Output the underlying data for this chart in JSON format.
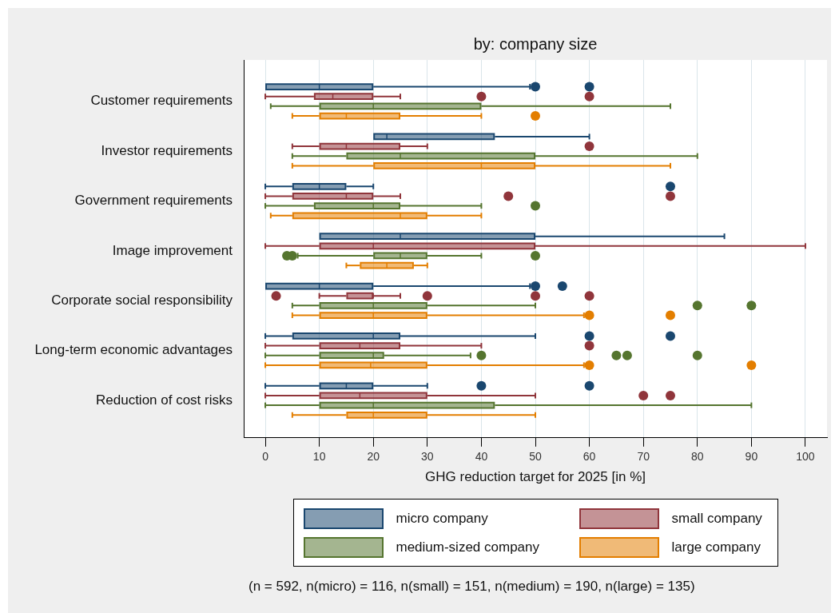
{
  "chart_data": {
    "type": "box",
    "orientation": "horizontal",
    "title": "by: company size",
    "xlabel": "GHG reduction target for 2025 [in %]",
    "categories": [
      "Customer requirements",
      "Investor requirements",
      "Government requirements",
      "Image improvement",
      "Corporate social responsibility",
      "Long-term economic advantages",
      "Reduction of cost risks"
    ],
    "series": [
      {
        "name": "micro company",
        "color": "#1a476f",
        "boxes": [
          {
            "low": 0,
            "q1": 0,
            "median": 10,
            "q3": 20,
            "high": 49,
            "outliers": [
              50,
              60
            ]
          },
          {
            "low": 20,
            "q1": 20,
            "median": 22.5,
            "q3": 42.5,
            "high": 60
          },
          {
            "low": 0,
            "q1": 5,
            "median": 10,
            "q3": 15,
            "high": 20,
            "outliers": [
              75
            ]
          },
          {
            "low": 10,
            "q1": 10,
            "median": 25,
            "q3": 50,
            "high": 85
          },
          {
            "low": 0,
            "q1": 0,
            "median": 10,
            "q3": 20,
            "high": 49,
            "outliers": [
              50,
              55
            ]
          },
          {
            "low": 0,
            "q1": 5,
            "median": 20,
            "q3": 25,
            "high": 50,
            "outliers": [
              60,
              75
            ]
          },
          {
            "low": 0,
            "q1": 10,
            "median": 15,
            "q3": 20,
            "high": 30,
            "outliers": [
              40,
              60
            ]
          }
        ]
      },
      {
        "name": "small company",
        "color": "#90353b",
        "boxes": [
          {
            "low": 0,
            "q1": 9,
            "median": 12.5,
            "q3": 20,
            "high": 25,
            "outliers": [
              40,
              60
            ]
          },
          {
            "low": 5,
            "q1": 10,
            "median": 15,
            "q3": 25,
            "high": 30,
            "outliers": [
              60
            ]
          },
          {
            "low": 0,
            "q1": 5,
            "median": 15,
            "q3": 20,
            "high": 25,
            "outliers": [
              45,
              75
            ]
          },
          {
            "low": 0,
            "q1": 10,
            "median": 20,
            "q3": 50,
            "high": 100
          },
          {
            "low": 10,
            "q1": 15,
            "median": 20,
            "q3": 20,
            "high": 25,
            "outliers": [
              2,
              30,
              50,
              60
            ]
          },
          {
            "low": 0,
            "q1": 10,
            "median": 17.5,
            "q3": 25,
            "high": 40,
            "outliers": [
              60
            ]
          },
          {
            "low": 0,
            "q1": 10,
            "median": 17.5,
            "q3": 30,
            "high": 50,
            "outliers": [
              70,
              75
            ]
          }
        ]
      },
      {
        "name": "medium-sized company",
        "color": "#55752f",
        "boxes": [
          {
            "low": 1,
            "q1": 10,
            "median": 20,
            "q3": 40,
            "high": 75
          },
          {
            "low": 5,
            "q1": 15,
            "median": 25,
            "q3": 50,
            "high": 80
          },
          {
            "low": 0,
            "q1": 9,
            "median": 20,
            "q3": 25,
            "high": 40,
            "outliers": [
              50
            ]
          },
          {
            "low": 6,
            "q1": 20,
            "median": 25,
            "q3": 30,
            "high": 40,
            "outliers": [
              4,
              5,
              50
            ]
          },
          {
            "low": 5,
            "q1": 10,
            "median": 20,
            "q3": 30,
            "high": 50,
            "outliers": [
              80,
              90
            ]
          },
          {
            "low": 0,
            "q1": 10,
            "median": 20,
            "q3": 22,
            "high": 38,
            "outliers": [
              40,
              65,
              67,
              80
            ]
          },
          {
            "low": 0,
            "q1": 10,
            "median": 20,
            "q3": 42.5,
            "high": 90
          }
        ]
      },
      {
        "name": "large company",
        "color": "#e37e00",
        "boxes": [
          {
            "low": 5,
            "q1": 10,
            "median": 15,
            "q3": 25,
            "high": 40,
            "outliers": [
              50
            ]
          },
          {
            "low": 5,
            "q1": 20,
            "median": 40,
            "q3": 50,
            "high": 75
          },
          {
            "low": 1,
            "q1": 5,
            "median": 25,
            "q3": 30,
            "high": 40
          },
          {
            "low": 15,
            "q1": 17.5,
            "median": 22.5,
            "q3": 27.5,
            "high": 30
          },
          {
            "low": 5,
            "q1": 10,
            "median": 20,
            "q3": 30,
            "high": 59,
            "outliers": [
              60,
              75
            ]
          },
          {
            "low": 0,
            "q1": 10,
            "median": 19.5,
            "q3": 30,
            "high": 59,
            "outliers": [
              60,
              90
            ]
          },
          {
            "low": 5,
            "q1": 15,
            "median": 20,
            "q3": 30,
            "high": 50
          }
        ]
      }
    ],
    "xlim": [
      -4,
      104
    ],
    "xticks": [
      0,
      10,
      20,
      30,
      40,
      50,
      60,
      70,
      80,
      90,
      100
    ],
    "grid": "x",
    "legend": "bottom",
    "marker": "circle",
    "annotations": [
      "(n = 592, n(micro) = 116, n(small) = 151, n(medium) = 190, n(large) = 135)"
    ]
  }
}
